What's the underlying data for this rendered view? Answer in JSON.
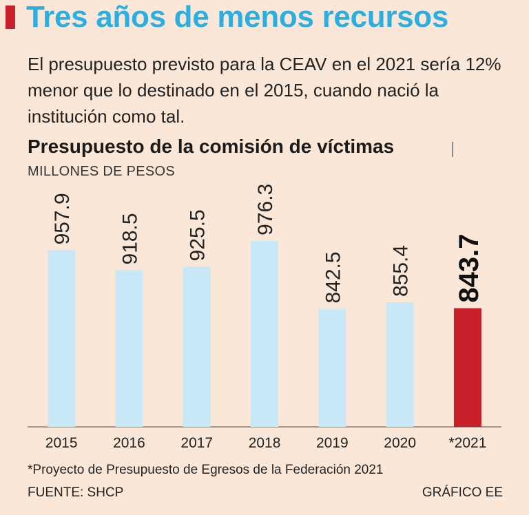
{
  "headline": "Tres años de menos recursos",
  "subtitle": "El presupuesto previsto para la CEAV en el 2021 sería 12% menor que lo destinado en el 2015, cuando nació la institución como tal.",
  "footnote": "*Proyecto de Presupuesto de Egresos de la Federación 2021",
  "source": "FUENTE: SHCP",
  "credit": "GRÁFICO EE",
  "colors": {
    "accent": "#c8202b",
    "headline": "#2baee0",
    "bar": "#c8e8f8",
    "bar_highlight": "#c8202b",
    "background": "#fbe7d8"
  },
  "chart_data": {
    "type": "bar",
    "title": "Presupuesto de la comisión de víctimas",
    "ylabel": "MILLONES DE PESOS",
    "xlabel": "",
    "categories": [
      "2015",
      "2016",
      "2017",
      "2018",
      "2019",
      "2020",
      "*2021"
    ],
    "values": [
      957.9,
      918.5,
      925.5,
      976.3,
      842.5,
      855.4,
      843.7
    ],
    "labels": [
      "957.9",
      "918.5",
      "925.5",
      "976.3",
      "842.5",
      "855.4",
      "843.7"
    ],
    "highlight_index": 6,
    "ylim": [
      610,
      1000
    ]
  }
}
